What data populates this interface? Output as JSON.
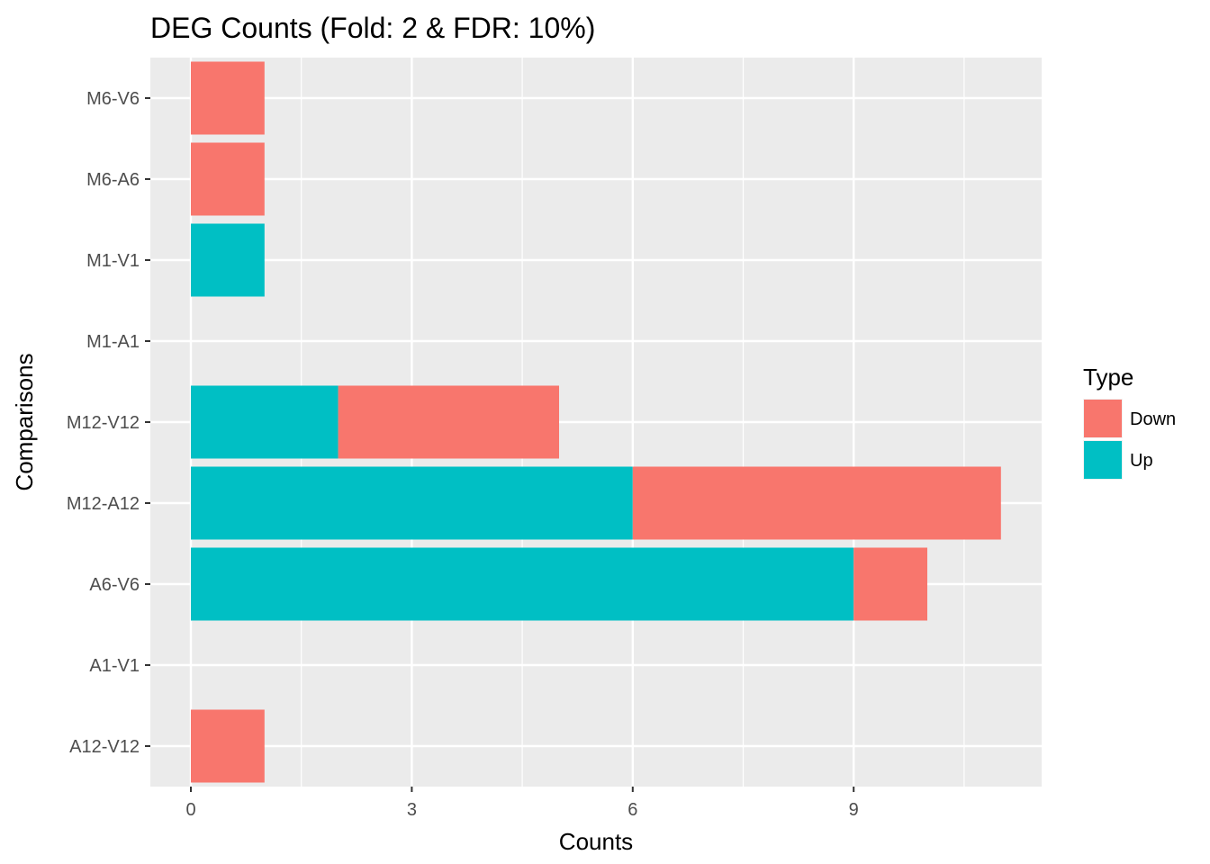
{
  "chart_data": {
    "type": "bar",
    "orientation": "horizontal",
    "stacked": true,
    "title": "DEG Counts (Fold: 2 & FDR: 10%)",
    "xlabel": "Counts",
    "ylabel": "Comparisons",
    "xlim": [
      0,
      11.5
    ],
    "xticks": [
      0,
      3,
      6,
      9
    ],
    "categories": [
      "A12-V12",
      "A1-V1",
      "A6-V6",
      "M12-A12",
      "M12-V12",
      "M1-A1",
      "M1-V1",
      "M6-A6",
      "M6-V6"
    ],
    "series": [
      {
        "name": "Up",
        "color": "#00BFC4",
        "values": [
          0,
          0,
          9,
          6,
          2,
          0,
          1,
          0,
          0
        ]
      },
      {
        "name": "Down",
        "color": "#F8766D",
        "values": [
          1,
          0,
          1,
          5,
          3,
          0,
          0,
          1,
          1
        ]
      }
    ],
    "legend": {
      "title": "Type",
      "position": "right",
      "entries": [
        {
          "label": "Down",
          "color": "#F8766D"
        },
        {
          "label": "Up",
          "color": "#00BFC4"
        }
      ]
    },
    "grid": true,
    "panel_background": "#EBEBEB"
  }
}
